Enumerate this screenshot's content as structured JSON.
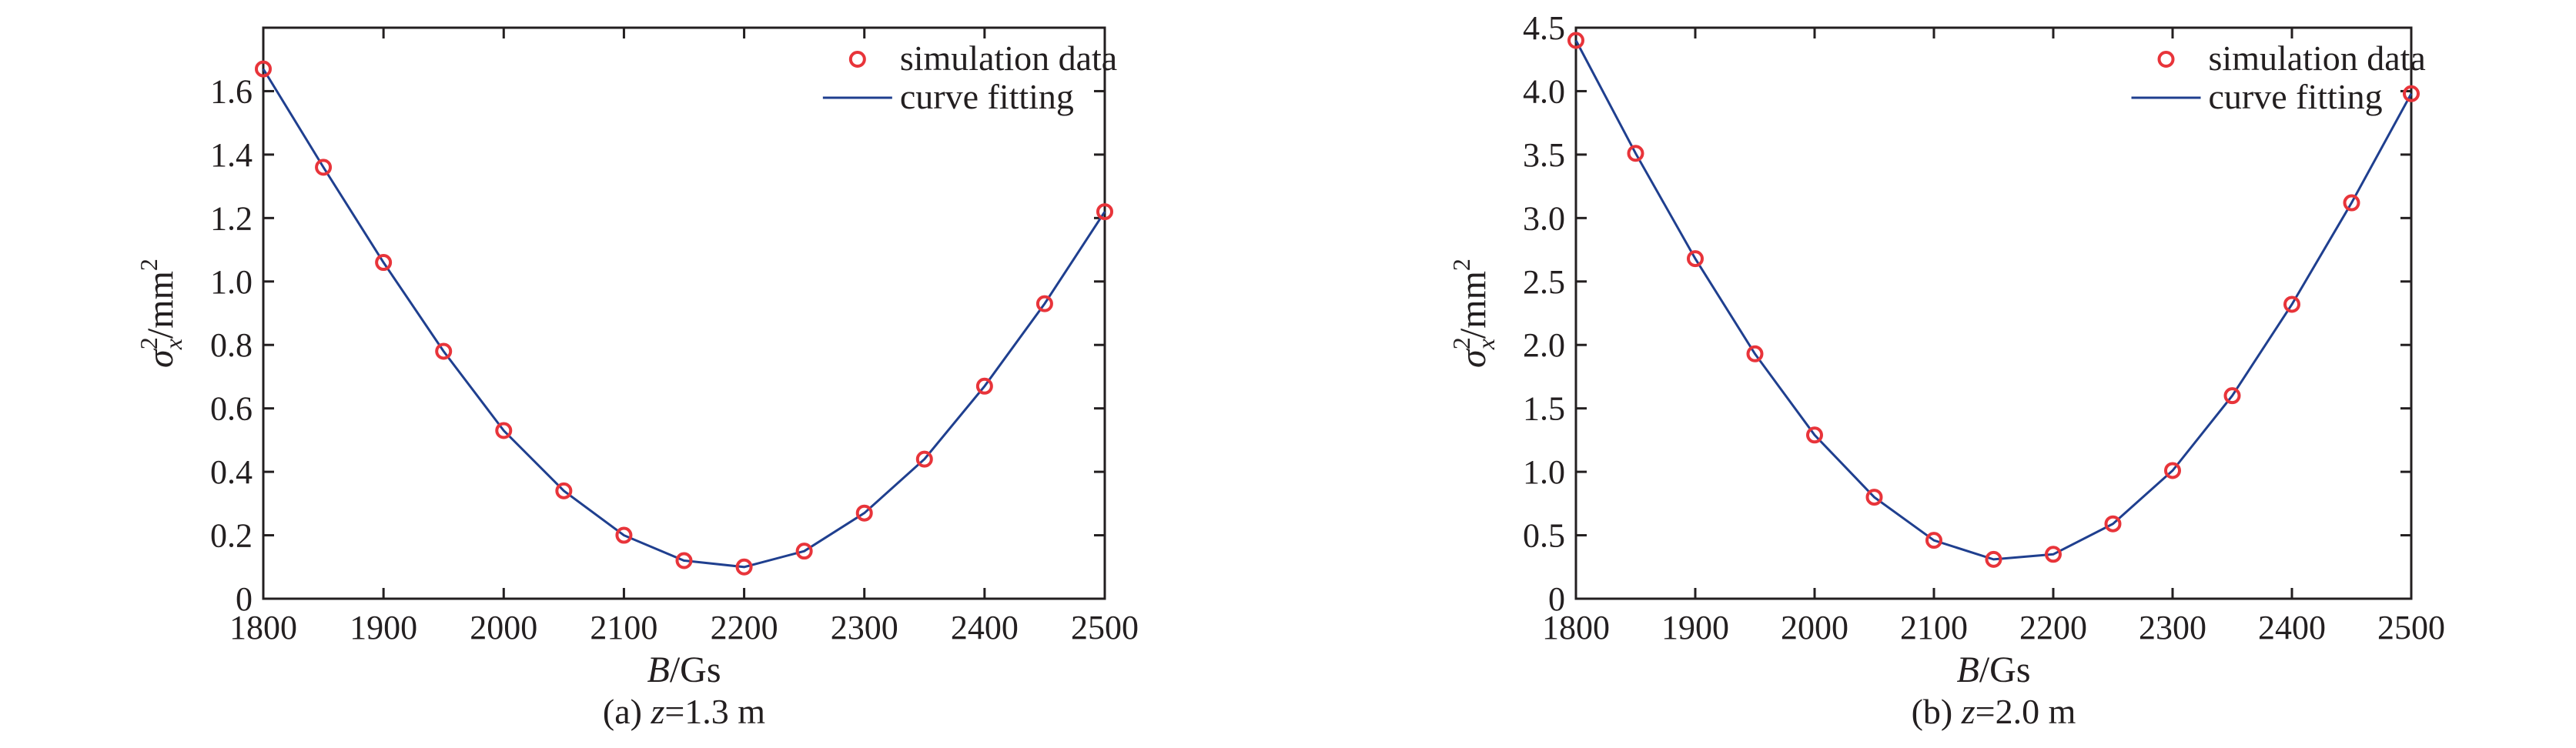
{
  "colors": {
    "marker": "#e8343a",
    "line": "#1f3f8f",
    "axis": "#231f20"
  },
  "chart_data": [
    {
      "type": "line",
      "caption_label": "(a) ",
      "caption_var": "z",
      "caption_value": "=1.3 m",
      "xlabel_var": "B",
      "xlabel_unit": "/Gs",
      "ylabel_base": "σ",
      "ylabel_sup": "2",
      "ylabel_sub": "x",
      "ylabel_unit": "/mm",
      "ylabel_unit_sup": "2",
      "xlim": [
        1800,
        2500
      ],
      "ylim": [
        0,
        1.8
      ],
      "xticks": [
        "1800",
        "1900",
        "2000",
        "2100",
        "2200",
        "2300",
        "2400",
        "2500"
      ],
      "yticks": [
        "0",
        "0.2",
        "0.4",
        "0.6",
        "0.8",
        "1.0",
        "1.2",
        "1.4",
        "1.6"
      ],
      "legend_position": "top-right",
      "series": [
        {
          "name": "simulation data",
          "kind": "marker",
          "x": [
            1800,
            1850,
            1900,
            1950,
            2000,
            2050,
            2100,
            2150,
            2200,
            2250,
            2300,
            2350,
            2400,
            2450,
            2500
          ],
          "y": [
            1.67,
            1.36,
            1.06,
            0.78,
            0.53,
            0.34,
            0.2,
            0.12,
            0.1,
            0.15,
            0.27,
            0.44,
            0.67,
            0.93,
            1.22
          ]
        },
        {
          "name": "curve fitting",
          "kind": "line",
          "x": [
            1800,
            1850,
            1900,
            1950,
            2000,
            2050,
            2100,
            2150,
            2200,
            2250,
            2300,
            2350,
            2400,
            2450,
            2500
          ],
          "y": [
            1.67,
            1.36,
            1.06,
            0.78,
            0.53,
            0.34,
            0.2,
            0.12,
            0.1,
            0.15,
            0.27,
            0.44,
            0.67,
            0.93,
            1.22
          ]
        }
      ]
    },
    {
      "type": "line",
      "caption_label": "(b) ",
      "caption_var": "z",
      "caption_value": "=2.0 m",
      "xlabel_var": "B",
      "xlabel_unit": "/Gs",
      "ylabel_base": "σ",
      "ylabel_sup": "2",
      "ylabel_sub": "x",
      "ylabel_unit": "/mm",
      "ylabel_unit_sup": "2",
      "xlim": [
        1800,
        2500
      ],
      "ylim": [
        0,
        4.5
      ],
      "xticks": [
        "1800",
        "1900",
        "2000",
        "2100",
        "2200",
        "2300",
        "2400",
        "2500"
      ],
      "yticks": [
        "0",
        "0.5",
        "1.0",
        "1.5",
        "2.0",
        "2.5",
        "3.0",
        "3.5",
        "4.0",
        "4.5"
      ],
      "legend_position": "top-right",
      "series": [
        {
          "name": "simulation data",
          "kind": "marker",
          "x": [
            1800,
            1850,
            1900,
            1950,
            2000,
            2050,
            2100,
            2150,
            2200,
            2250,
            2300,
            2350,
            2400,
            2450,
            2500
          ],
          "y": [
            4.4,
            3.51,
            2.68,
            1.93,
            1.29,
            0.8,
            0.46,
            0.31,
            0.35,
            0.59,
            1.01,
            1.6,
            2.32,
            3.12,
            3.98
          ]
        },
        {
          "name": "curve fitting",
          "kind": "line",
          "x": [
            1800,
            1850,
            1900,
            1950,
            2000,
            2050,
            2100,
            2150,
            2200,
            2250,
            2300,
            2350,
            2400,
            2450,
            2500
          ],
          "y": [
            4.4,
            3.51,
            2.68,
            1.93,
            1.29,
            0.8,
            0.46,
            0.31,
            0.35,
            0.59,
            1.01,
            1.6,
            2.32,
            3.12,
            3.98
          ]
        }
      ]
    }
  ]
}
